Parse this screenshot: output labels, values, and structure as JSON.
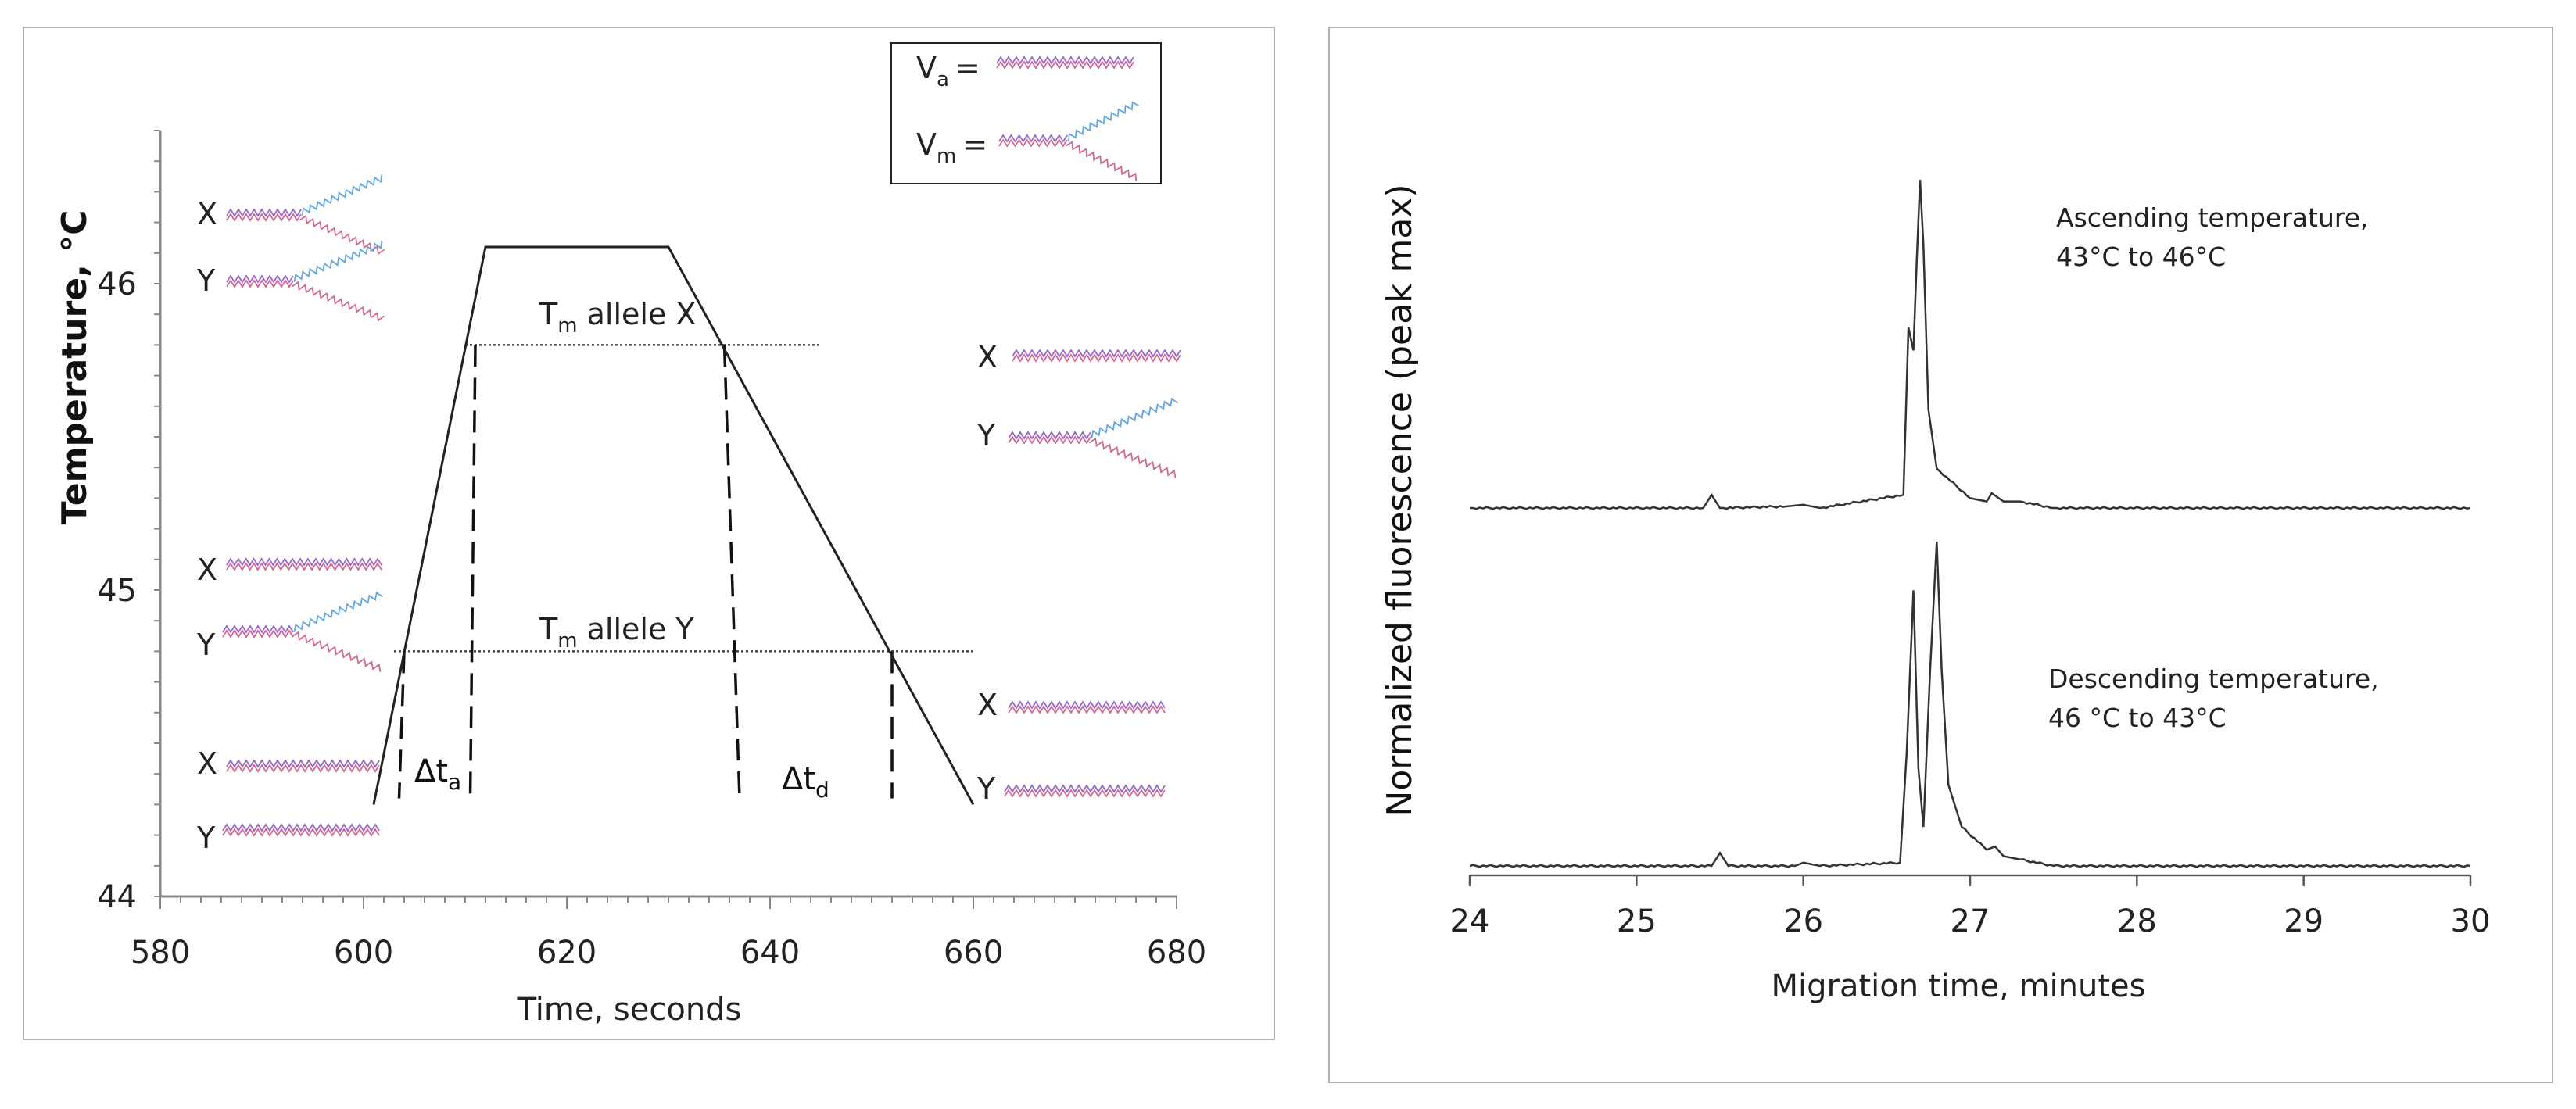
{
  "panels": {
    "left": {
      "legend": {
        "annealed_label": "V",
        "annealed_sub": "a",
        "melted_label": "V",
        "melted_sub": "m",
        "equals": "="
      },
      "strand_colors": {
        "pink": "#d06a90",
        "purple": "#9a6ac8",
        "blue": "#63a6de"
      },
      "allele_x_label": "X",
      "allele_y_label": "Y",
      "tm_x": {
        "prefix": "T",
        "sub": "m",
        "suffix": " allele X"
      },
      "tm_y": {
        "prefix": "T",
        "sub": "m",
        "suffix": " allele Y"
      },
      "dta": {
        "prefix": "Δt",
        "sub": "a"
      },
      "dtd": {
        "prefix": "Δt",
        "sub": "d"
      }
    },
    "right": {
      "ascending_line1": "Ascending temperature,",
      "ascending_line2": "43°C to 46°C",
      "descending_line1": "Descending temperature,",
      "descending_line2": "46 °C to 43°C"
    }
  },
  "chart_data": [
    {
      "type": "line",
      "xlabel": "Time, seconds",
      "ylabel": "Temperature, °C",
      "xlim": [
        580,
        680
      ],
      "ylim": [
        44,
        46.5
      ],
      "x_ticks": [
        580,
        600,
        620,
        640,
        660,
        680
      ],
      "y_ticks": [
        44,
        45,
        46
      ],
      "series": [
        {
          "x": [
            601,
            612,
            630,
            660
          ],
          "y": [
            44.3,
            46.12,
            46.12,
            44.3
          ]
        }
      ],
      "reference_lines": [
        {
          "y": 45.8,
          "x_range": [
            610,
            645
          ]
        },
        {
          "y": 44.8,
          "x_range": [
            603,
            660
          ]
        }
      ],
      "drop_lines": [
        {
          "x_top": 611,
          "x_bottom": 610.5,
          "y_from": 45.8,
          "y_to": 44.32
        },
        {
          "x_top": 635.5,
          "x_bottom": 637,
          "y_from": 45.8,
          "y_to": 44.32
        },
        {
          "x_top": 604,
          "x_bottom": 603.5,
          "y_from": 44.8,
          "y_to": 44.32
        },
        {
          "x_top": 652,
          "x_bottom": 652,
          "y_from": 44.8,
          "y_to": 44.32
        }
      ]
    },
    {
      "type": "line",
      "xlabel": "Migration time, minutes",
      "ylabel": "Normalized  fluorescence  (peak max)",
      "xlim": [
        24,
        30
      ],
      "x_ticks": [
        24,
        25,
        26,
        27,
        28,
        29,
        30
      ],
      "series": [
        {
          "x": [
            24,
            25.4,
            25.45,
            25.5,
            25.9,
            26.0,
            26.1,
            26.6,
            26.63,
            26.66,
            26.68,
            26.7,
            26.72,
            26.75,
            26.8,
            27.0,
            27.1,
            27.13,
            27.2,
            27.3,
            27.5,
            30
          ],
          "y": [
            0.0,
            0.0,
            0.04,
            0.0,
            0.005,
            0.01,
            0.0,
            0.04,
            0.55,
            0.48,
            0.75,
            1.0,
            0.8,
            0.3,
            0.12,
            0.03,
            0.02,
            0.045,
            0.02,
            0.02,
            0.0,
            0.0
          ]
        },
        {
          "x": [
            24,
            25.45,
            25.5,
            25.55,
            25.95,
            26.0,
            26.1,
            26.58,
            26.62,
            26.66,
            26.69,
            26.72,
            26.76,
            26.8,
            26.83,
            26.87,
            26.95,
            27.1,
            27.15,
            27.2,
            27.3,
            27.5,
            30
          ],
          "y": [
            0.0,
            0.0,
            0.04,
            0.0,
            0.0,
            0.01,
            0.0,
            0.01,
            0.35,
            0.85,
            0.3,
            0.12,
            0.6,
            1.0,
            0.6,
            0.25,
            0.12,
            0.05,
            0.06,
            0.03,
            0.02,
            0.0,
            0.0
          ]
        }
      ]
    }
  ]
}
